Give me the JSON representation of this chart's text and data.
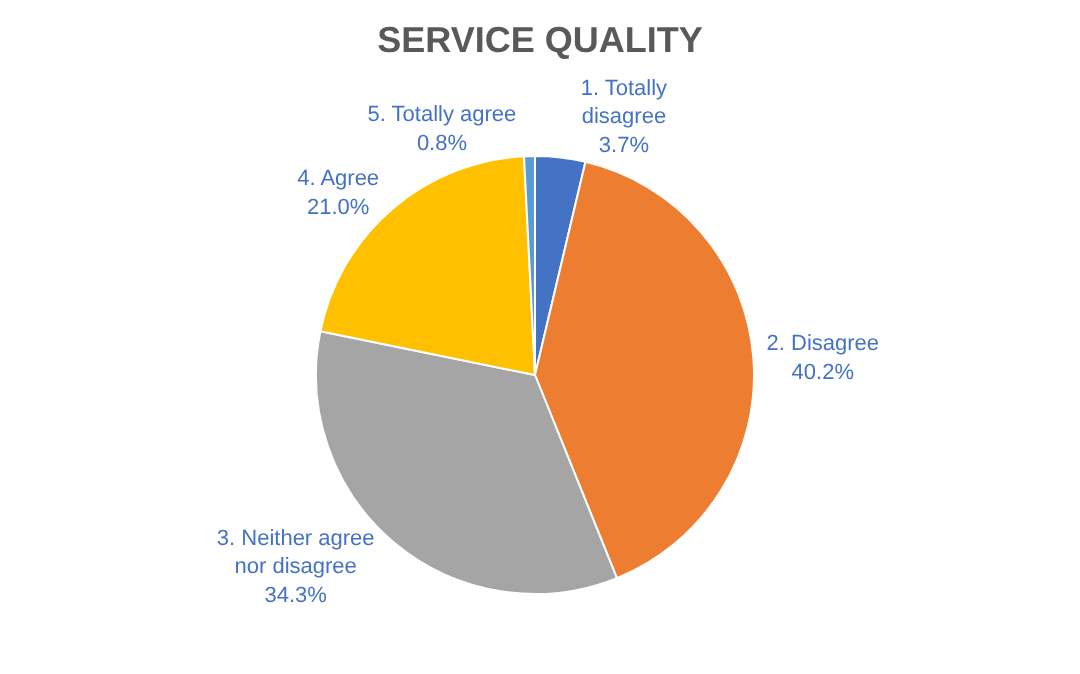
{
  "chart_data": {
    "type": "pie",
    "title": "SERVICE QUALITY",
    "categories": [
      "1. Totally disagree",
      "2. Disagree",
      "3. Neither agree nor disagree",
      "4. Agree",
      "5. Totally agree"
    ],
    "values": [
      3.7,
      40.2,
      34.3,
      21.0,
      0.8
    ],
    "value_labels": [
      "3.7%",
      "40.2%",
      "34.3%",
      "21.0%",
      "0.8%"
    ],
    "colors": [
      "#4472c4",
      "#ed7d31",
      "#a5a5a5",
      "#ffc000",
      "#5b9bd5"
    ],
    "legend": false
  }
}
